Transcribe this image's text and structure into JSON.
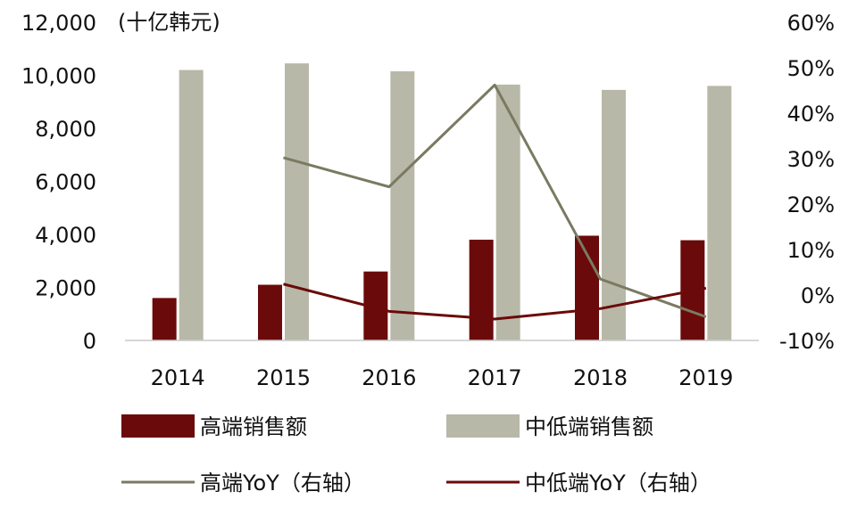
{
  "chart_data": {
    "type": "bar",
    "categories": [
      "2014",
      "2015",
      "2016",
      "2017",
      "2018",
      "2019"
    ],
    "unit_label": "(十亿韩元)",
    "y_left": {
      "min": 0,
      "max": 12000,
      "ticks": [
        "0",
        "2,000",
        "4,000",
        "6,000",
        "8,000",
        "10,000",
        "12,000"
      ]
    },
    "y_right": {
      "min": -10,
      "max": 60,
      "ticks": [
        "-10%",
        "0%",
        "10%",
        "20%",
        "30%",
        "40%",
        "50%",
        "60%"
      ]
    },
    "series": [
      {
        "name": "高端销售额",
        "kind": "bar",
        "axis": "left",
        "color": "#6b0a0a",
        "values": [
          1600,
          2100,
          2600,
          3800,
          3950,
          3780
        ]
      },
      {
        "name": "中低端销售额",
        "kind": "bar",
        "axis": "left",
        "color": "#b8b8a8",
        "values": [
          10200,
          10450,
          10150,
          9650,
          9450,
          9600
        ]
      },
      {
        "name": "高端YoY（右轴）",
        "kind": "line",
        "axis": "right",
        "color": "#7a7a62",
        "values": [
          null,
          30.2,
          23.8,
          46.2,
          3.5,
          -4.8
        ]
      },
      {
        "name": "中低端YoY（右轴）",
        "kind": "line",
        "axis": "right",
        "color": "#6b0a0a",
        "values": [
          null,
          2.4,
          -3.6,
          -5.3,
          -3.0,
          1.5
        ]
      }
    ],
    "grid": false,
    "legend_position": "bottom"
  }
}
